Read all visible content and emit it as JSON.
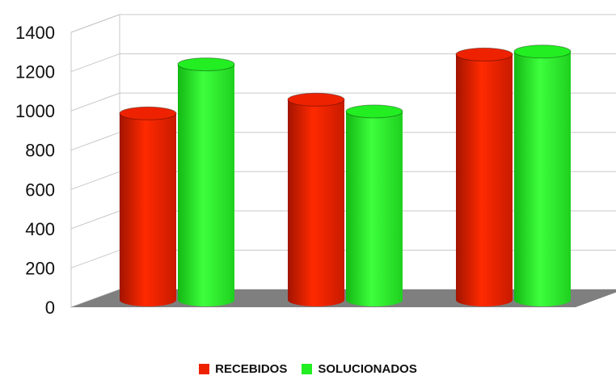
{
  "chart_data": {
    "type": "bar",
    "style": "3d-cylinder",
    "categories": [
      "",
      "",
      ""
    ],
    "series": [
      {
        "name": "RECEBIDOS",
        "values": [
          950,
          1020,
          1250
        ],
        "color": "#ee2200"
      },
      {
        "name": "SOLUCIONADOS",
        "values": [
          1200,
          960,
          1265
        ],
        "color": "#22ee22"
      }
    ],
    "ylim": [
      0,
      1400
    ],
    "yticks": [
      "0",
      "200",
      "400",
      "600",
      "800",
      "1000",
      "1200",
      "1400"
    ],
    "grid": true,
    "floor_color": "#7f7f7f",
    "legend_position": "bottom"
  }
}
